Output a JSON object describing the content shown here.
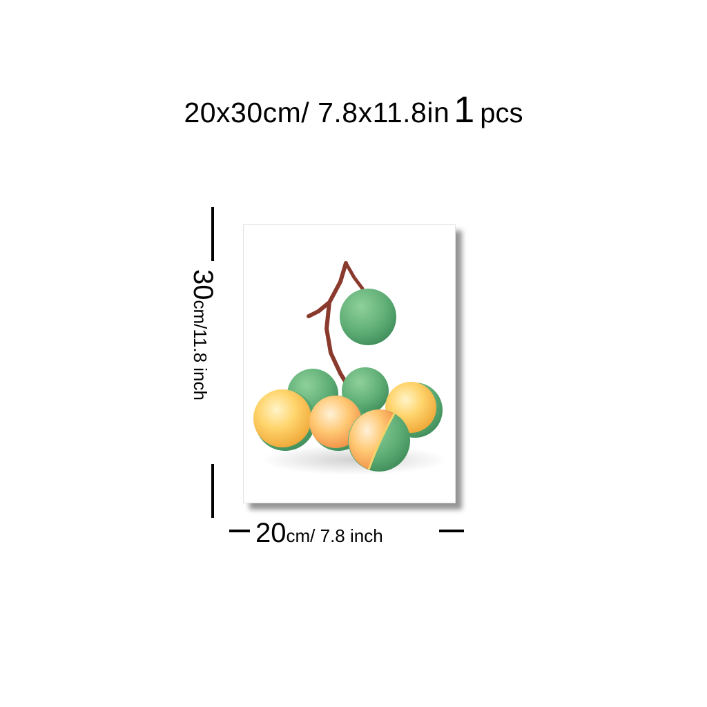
{
  "headline": {
    "size": "20x30cm/ 7.8x11.8in",
    "count": "1",
    "count_unit": "pcs"
  },
  "height_dimension": {
    "number": "30",
    "unit_text": "cm/11.8 inch"
  },
  "width_dimension": {
    "number": "20",
    "unit_text": "cm/ 7.8 inch"
  },
  "colors": {
    "fruit_green": "#5fae76",
    "fruit_yellow": "#f6c24d",
    "stem_brown": "#8a3a2c"
  }
}
